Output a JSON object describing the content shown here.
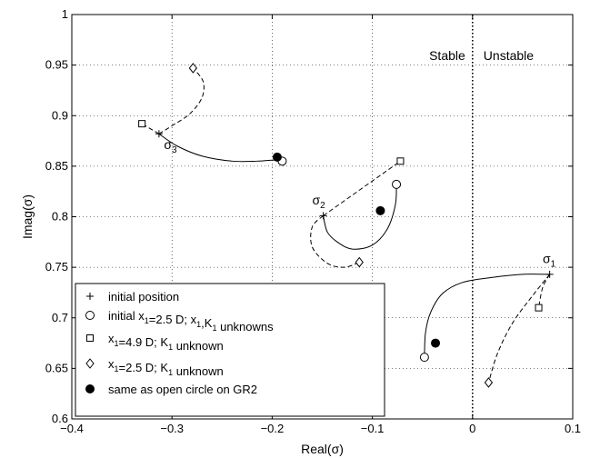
{
  "chart_data": {
    "type": "line",
    "xlabel": "Real(σ)",
    "ylabel": "Imag(σ)",
    "xlim": [
      -0.4,
      0.1
    ],
    "ylim": [
      0.6,
      1.0
    ],
    "x_ticks": [
      -0.4,
      -0.3,
      -0.2,
      -0.1,
      0,
      0.1
    ],
    "y_ticks": [
      0.6,
      0.65,
      0.7,
      0.75,
      0.8,
      0.85,
      0.9,
      0.95,
      1
    ],
    "x_tick_labels": [
      "−0.4",
      "−0.3",
      "−0.2",
      "−0.1",
      "0",
      "0.1"
    ],
    "y_tick_labels": [
      "0.6",
      "0.65",
      "0.7",
      "0.75",
      "0.8",
      "0.85",
      "0.9",
      "0.95",
      "1"
    ],
    "grid": true,
    "legend_position": "bottom-left",
    "region_labels": {
      "stable": "Stable",
      "unstable": "Unstable"
    },
    "stability_boundary_x": 0,
    "annotations": [
      {
        "base": "σ",
        "sub": "3",
        "x": -0.308,
        "y": 0.867
      },
      {
        "base": "σ",
        "sub": "2",
        "x": -0.16,
        "y": 0.812
      },
      {
        "base": "σ",
        "sub": "1",
        "x": 0.07,
        "y": 0.754
      }
    ],
    "initial_positions": [
      {
        "name": "σ3",
        "x": -0.313,
        "y": 0.882
      },
      {
        "name": "σ2",
        "x": -0.149,
        "y": 0.801
      },
      {
        "name": "σ1",
        "x": 0.077,
        "y": 0.743
      }
    ],
    "series": [
      {
        "name": "initial x1=2.5 D; x1,K1 unknowns",
        "style": "solid",
        "marker": "open-circle",
        "paths": [
          [
            [
              -0.313,
              0.882
            ],
            [
              -0.295,
              0.87
            ],
            [
              -0.27,
              0.86
            ],
            [
              -0.24,
              0.855
            ],
            [
              -0.215,
              0.855
            ],
            [
              -0.2,
              0.856
            ],
            [
              -0.19,
              0.856
            ]
          ],
          [
            [
              -0.149,
              0.801
            ],
            [
              -0.145,
              0.785
            ],
            [
              -0.135,
              0.775
            ],
            [
              -0.12,
              0.768
            ],
            [
              -0.1,
              0.772
            ],
            [
              -0.085,
              0.788
            ],
            [
              -0.077,
              0.812
            ],
            [
              -0.076,
              0.832
            ]
          ],
          [
            [
              0.077,
              0.743
            ],
            [
              0.05,
              0.743
            ],
            [
              0.02,
              0.74
            ],
            [
              -0.01,
              0.735
            ],
            [
              -0.03,
              0.724
            ],
            [
              -0.042,
              0.705
            ],
            [
              -0.047,
              0.685
            ],
            [
              -0.048,
              0.662
            ]
          ]
        ],
        "endpoints": [
          [
            -0.19,
            0.855
          ],
          [
            -0.076,
            0.832
          ],
          [
            -0.048,
            0.661
          ]
        ]
      },
      {
        "name": "x1=4.9 D; K1 unknown",
        "style": "dashed",
        "marker": "square",
        "paths": [
          [
            [
              -0.313,
              0.882
            ],
            [
              -0.33,
              0.892
            ]
          ],
          [
            [
              -0.149,
              0.801
            ],
            [
              -0.072,
              0.855
            ]
          ],
          [
            [
              0.077,
              0.743
            ],
            [
              0.07,
              0.73
            ],
            [
              0.066,
              0.71
            ]
          ]
        ],
        "endpoints": [
          [
            -0.33,
            0.892
          ],
          [
            -0.072,
            0.855
          ],
          [
            0.066,
            0.71
          ]
        ]
      },
      {
        "name": "x1=2.5 D; K1 unknown",
        "style": "dashed",
        "marker": "diamond",
        "paths": [
          [
            [
              -0.313,
              0.882
            ],
            [
              -0.3,
              0.89
            ],
            [
              -0.282,
              0.902
            ],
            [
              -0.27,
              0.918
            ],
            [
              -0.269,
              0.934
            ],
            [
              -0.279,
              0.947
            ]
          ],
          [
            [
              -0.149,
              0.801
            ],
            [
              -0.16,
              0.79
            ],
            [
              -0.16,
              0.77
            ],
            [
              -0.145,
              0.754
            ],
            [
              -0.128,
              0.75
            ],
            [
              -0.113,
              0.755
            ]
          ],
          [
            [
              0.077,
              0.743
            ],
            [
              0.06,
              0.722
            ],
            [
              0.04,
              0.695
            ],
            [
              0.025,
              0.665
            ],
            [
              0.016,
              0.636
            ]
          ]
        ],
        "endpoints": [
          [
            -0.279,
            0.947
          ],
          [
            -0.113,
            0.755
          ],
          [
            0.016,
            0.636
          ]
        ]
      },
      {
        "name": "same as open circle on GR2",
        "style": "none",
        "marker": "filled-circle",
        "points": [
          [
            -0.195,
            0.859
          ],
          [
            -0.092,
            0.806
          ],
          [
            -0.037,
            0.675
          ]
        ]
      }
    ],
    "legend": [
      {
        "marker": "plus",
        "label": "initial position"
      },
      {
        "marker": "open-circle",
        "label": "initial x1=2.5 D; x1,K1 unknowns"
      },
      {
        "marker": "square",
        "label": "x1=4.9 D; K1 unknown"
      },
      {
        "marker": "diamond",
        "label": "x1=2.5 D; K1 unknown"
      },
      {
        "marker": "filled-circle",
        "label": "same as open circle on GR2"
      }
    ]
  }
}
